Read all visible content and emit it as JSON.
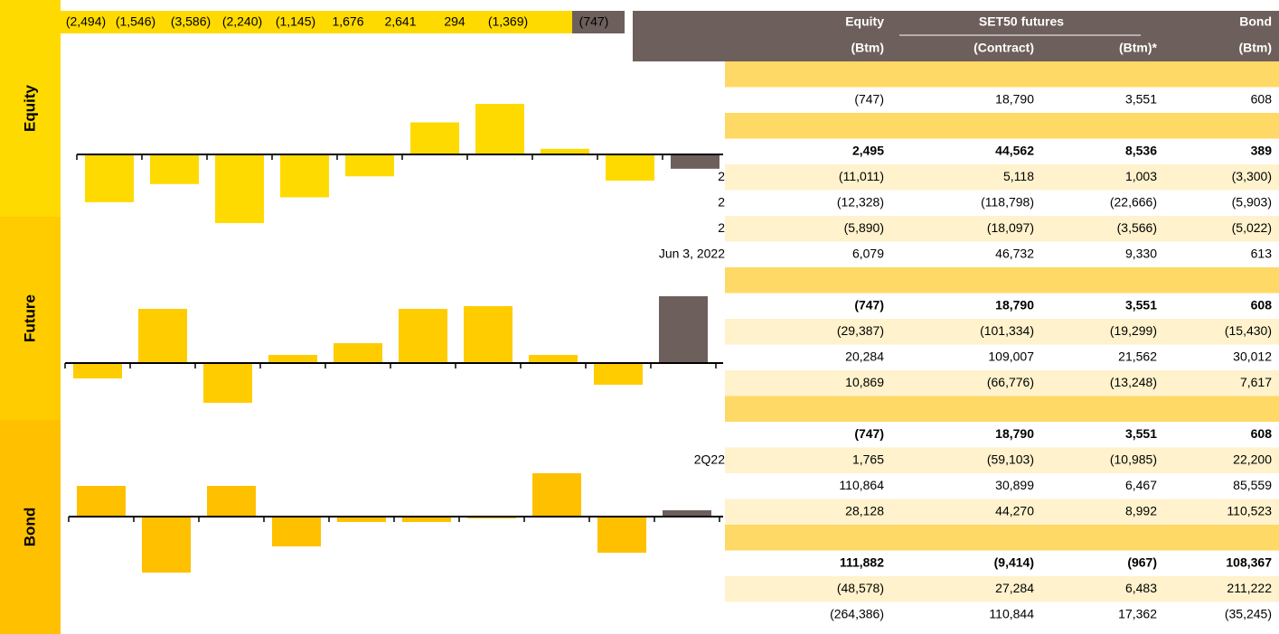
{
  "chart_data": [
    {
      "type": "bar",
      "title": "Equity",
      "values": [
        -2494,
        -1546,
        -3586,
        -2240,
        -1145,
        1676,
        2641,
        294,
        -1369,
        -747
      ],
      "value_labels": [
        "(2,494)",
        "(1,546)",
        "(3,586)",
        "(2,240)",
        "(1,145)",
        "1,676",
        "2,641",
        "294",
        "(1,369)",
        "(747)"
      ],
      "colors": [
        "#ffda00",
        "#ffda00",
        "#ffda00",
        "#ffda00",
        "#ffda00",
        "#ffda00",
        "#ffda00",
        "#ffda00",
        "#ffda00",
        "#6d5f5b"
      ]
    },
    {
      "type": "bar",
      "title": "Future",
      "values": [
        -816,
        2880,
        -2112,
        432,
        1056,
        2880,
        3024,
        432,
        -1152,
        3551
      ],
      "colors": [
        "#ffcc00",
        "#ffcc00",
        "#ffcc00",
        "#ffcc00",
        "#ffcc00",
        "#ffcc00",
        "#ffcc00",
        "#ffcc00",
        "#ffcc00",
        "#6d5f5b"
      ]
    },
    {
      "type": "bar",
      "title": "Bond",
      "values": [
        2958,
        -5394,
        2958,
        -2871,
        -522,
        -522,
        -174,
        4176,
        -3480,
        608
      ],
      "colors": [
        "#ffc000",
        "#ffc000",
        "#ffc000",
        "#ffc000",
        "#ffc000",
        "#ffc000",
        "#ffc000",
        "#ffc000",
        "#ffc000",
        "#6d5f5b"
      ]
    }
  ],
  "table": {
    "header": {
      "equity": "Equity",
      "futures": "SET50 futures",
      "bond": "Bond",
      "units": [
        "(Btm)",
        "(Contract)",
        "(Btm)*",
        "(Btm)"
      ]
    },
    "rows": [
      {
        "cells": []
      },
      {
        "cells": [
          "(747)",
          "18,790",
          "3,551",
          "608"
        ]
      },
      {
        "cells": []
      },
      {
        "cells": [
          "2,495",
          "44,562",
          "8,536",
          "389"
        ],
        "bold": true
      },
      {
        "label": "2",
        "cells": [
          "(11,011)",
          "5,118",
          "1,003",
          "(3,300)"
        ]
      },
      {
        "label": "2",
        "cells": [
          "(12,328)",
          "(118,798)",
          "(22,666)",
          "(5,903)"
        ]
      },
      {
        "label": "2",
        "cells": [
          "(5,890)",
          "(18,097)",
          "(3,566)",
          "(5,022)"
        ]
      },
      {
        "label": "Jun 3, 2022",
        "cells": [
          "6,079",
          "46,732",
          "9,330",
          "613"
        ]
      },
      {
        "cells": []
      },
      {
        "cells": [
          "(747)",
          "18,790",
          "3,551",
          "608"
        ],
        "bold": true
      },
      {
        "cells": [
          "(29,387)",
          "(101,334)",
          "(19,299)",
          "(15,430)"
        ]
      },
      {
        "cells": [
          "20,284",
          "109,007",
          "21,562",
          "30,012"
        ]
      },
      {
        "cells": [
          "10,869",
          "(66,776)",
          "(13,248)",
          "7,617"
        ]
      },
      {
        "cells": []
      },
      {
        "cells": [
          "(747)",
          "18,790",
          "3,551",
          "608"
        ],
        "bold": true
      },
      {
        "label": "2Q22",
        "cells": [
          "1,765",
          "(59,103)",
          "(10,985)",
          "22,200"
        ]
      },
      {
        "cells": [
          "110,864",
          "30,899",
          "6,467",
          "85,559"
        ]
      },
      {
        "cells": [
          "28,128",
          "44,270",
          "8,992",
          "110,523"
        ]
      },
      {
        "cells": []
      },
      {
        "cells": [
          "111,882",
          "(9,414)",
          "(967)",
          "108,367"
        ],
        "bold": true
      },
      {
        "cells": [
          "(48,578)",
          "27,284",
          "6,483",
          "211,222"
        ]
      },
      {
        "cells": [
          "(264,386)",
          "110,844",
          "17,362",
          "(35,245)"
        ]
      }
    ]
  }
}
